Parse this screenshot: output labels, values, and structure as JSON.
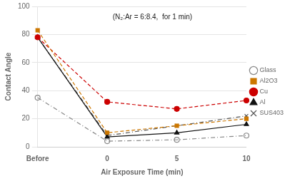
{
  "chart_data": {
    "type": "line",
    "categories": [
      "Before",
      "0",
      "5",
      "10"
    ],
    "xlabel": "Air Exposure Time (min)",
    "ylabel": "Contact Angle",
    "annotation": "(N₂:Ar = 6:8.4,  for 1 min)",
    "ylim": [
      0,
      100
    ],
    "yticks": [
      0,
      20,
      40,
      60,
      80,
      100
    ],
    "grid": true,
    "legend": "right",
    "series": [
      {
        "name": "Glass",
        "color": "#888888",
        "values": [
          35,
          4,
          5,
          8
        ],
        "marker": "circle_open",
        "line_style": "dashdot"
      },
      {
        "name": "Al2O3",
        "color": "#cc7700",
        "values": [
          83,
          10,
          15,
          20
        ],
        "marker": "square",
        "line_style": "dashed"
      },
      {
        "name": "Cu",
        "color": "#cc0000",
        "values": [
          78,
          32,
          27,
          33
        ],
        "marker": "circle",
        "line_style": "dashed"
      },
      {
        "name": "Al",
        "color": "#111111",
        "values": [
          78,
          7,
          10,
          16
        ],
        "marker": "triangle",
        "line_style": "solid"
      },
      {
        "name": "SUS403",
        "color": "#555555",
        "values": [
          78,
          8,
          15,
          22
        ],
        "marker": "x",
        "line_style": "dashdot"
      }
    ]
  }
}
